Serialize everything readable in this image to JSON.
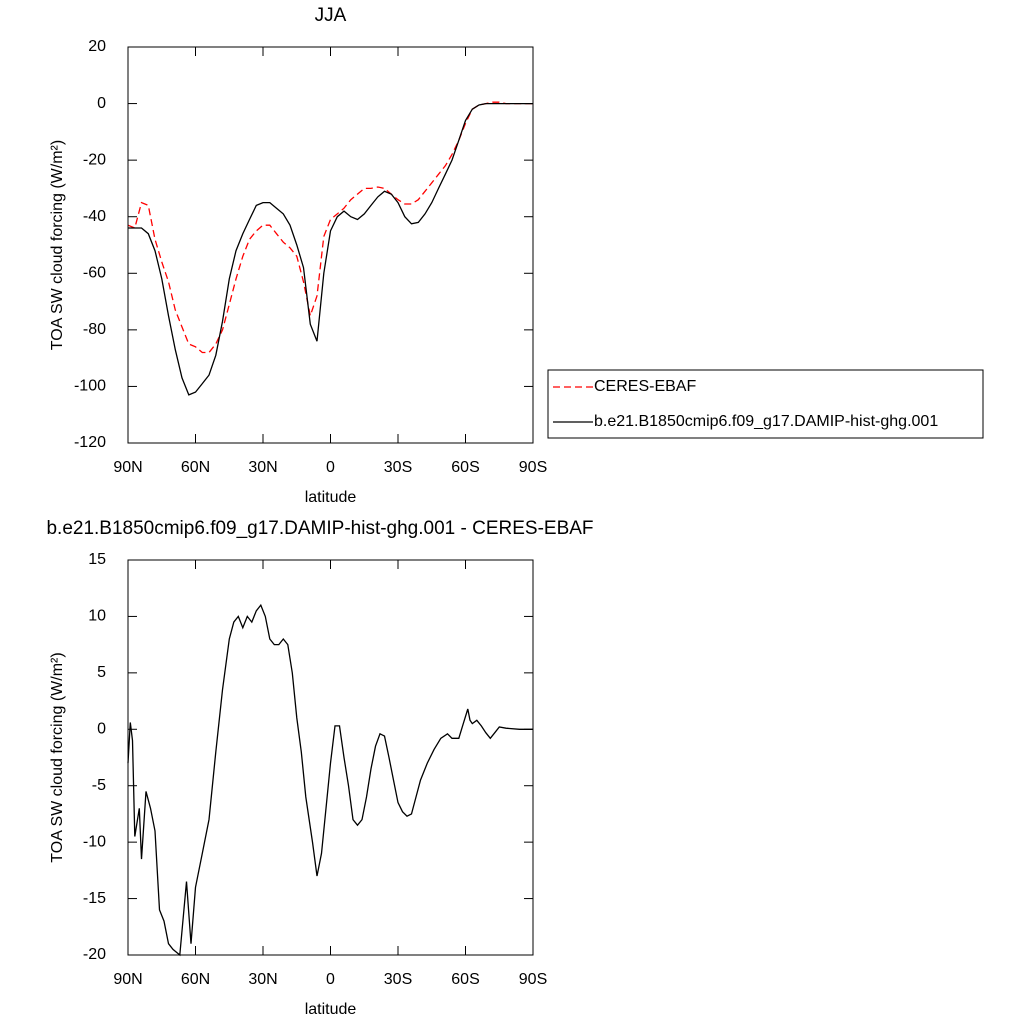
{
  "chart_data": [
    {
      "type": "line",
      "title": "JJA",
      "xlabel": "latitude",
      "ylabel": "TOA SW cloud forcing (W/m²)",
      "x": [
        90,
        87,
        84,
        81,
        78,
        75,
        72,
        69,
        66,
        63,
        60,
        57,
        54,
        51,
        48,
        45,
        42,
        39,
        36,
        33,
        30,
        27,
        24,
        21,
        18,
        15,
        12,
        9,
        6,
        3,
        0,
        -3,
        -6,
        -9,
        -12,
        -15,
        -18,
        -21,
        -24,
        -27,
        -30,
        -33,
        -36,
        -39,
        -42,
        -45,
        -48,
        -51,
        -54,
        -57,
        -60,
        -63,
        -66,
        -69,
        -72,
        -75,
        -78,
        -81,
        -84,
        -87,
        -90
      ],
      "series": [
        {
          "name": "CERES-EBAF",
          "color": "#ff0000",
          "dashed": true,
          "values": [
            -43,
            -44,
            -35,
            -36,
            -48,
            -56,
            -63,
            -73,
            -79,
            -85,
            -86,
            -88,
            -88,
            -85,
            -80,
            -71,
            -62,
            -54,
            -48,
            -45,
            -43,
            -43,
            -46,
            -49,
            -51,
            -54,
            -63,
            -75,
            -68,
            -47,
            -41,
            -39,
            -37,
            -34,
            -32,
            -30,
            -30,
            -29.5,
            -30,
            -32,
            -34,
            -35.5,
            -35.5,
            -34,
            -31,
            -28,
            -25,
            -22,
            -18,
            -13,
            -7,
            -2,
            -0.5,
            0,
            0.5,
            0.5,
            0,
            0,
            0,
            0,
            0
          ]
        },
        {
          "name": "b.e21.B1850cmip6.f09_g17.DAMIP-hist-ghg.001",
          "color": "#000000",
          "dashed": false,
          "values": [
            -44,
            -44,
            -44,
            -46,
            -52,
            -62,
            -75,
            -87,
            -97,
            -103,
            -102,
            -99,
            -96,
            -89,
            -77,
            -62,
            -52,
            -46,
            -41,
            -36,
            -35,
            -35,
            -37,
            -39,
            -43,
            -50,
            -58,
            -78,
            -84,
            -60,
            -45,
            -40,
            -38,
            -40,
            -41,
            -39,
            -36,
            -33,
            -31,
            -32,
            -35,
            -40,
            -42.5,
            -42,
            -39,
            -35,
            -30,
            -25,
            -20,
            -13,
            -6,
            -2,
            -0.5,
            0,
            0,
            0,
            0,
            0,
            0,
            0,
            0
          ]
        }
      ],
      "xlim": [
        90,
        -90
      ],
      "xticks": [
        {
          "value": 90,
          "label": "90N"
        },
        {
          "value": 60,
          "label": "60N"
        },
        {
          "value": 30,
          "label": "30N"
        },
        0,
        {
          "value": -30,
          "label": "30S"
        },
        {
          "value": -60,
          "label": "60S"
        },
        {
          "value": -90,
          "label": "90S"
        }
      ],
      "ylim": [
        -120,
        20
      ],
      "yticks": [
        20,
        0,
        -20,
        -40,
        -60,
        -80,
        -100,
        -120
      ],
      "legend": "right"
    },
    {
      "type": "line",
      "title": "b.e21.B1850cmip6.f09_g17.DAMIP-hist-ghg.001 - CERES-EBAF",
      "xlabel": "latitude",
      "ylabel": "TOA SW cloud forcing (W/m²)",
      "x": [
        90,
        89,
        88,
        87,
        85,
        84,
        82,
        80,
        78,
        76,
        74,
        72,
        70,
        67,
        64,
        62,
        60,
        57,
        54,
        51,
        48,
        45,
        43,
        41,
        39,
        37,
        35,
        33,
        31,
        29,
        27,
        25,
        23,
        21,
        19,
        17,
        15,
        13,
        11,
        8,
        6,
        4,
        2,
        0,
        -2,
        -4,
        -6,
        -8,
        -10,
        -12,
        -14,
        -16,
        -18,
        -20,
        -22,
        -24,
        -26,
        -28,
        -30,
        -32,
        -34,
        -36,
        -38,
        -40,
        -43,
        -46,
        -49,
        -52,
        -54,
        -57,
        -59,
        -61,
        -62,
        -63,
        -65,
        -67,
        -69,
        -71,
        -73,
        -75,
        -78,
        -84,
        -90
      ],
      "series": [
        {
          "name": "b.e21.B1850cmip6.f09_g17.DAMIP-hist-ghg.001 - CERES-EBAF",
          "color": "#000000",
          "dashed": false,
          "values": [
            -3,
            0.6,
            -1,
            -9.5,
            -7,
            -11.5,
            -5.5,
            -7,
            -9,
            -16,
            -17,
            -19,
            -19.5,
            -20,
            -13.5,
            -19,
            -14,
            -11,
            -8,
            -2,
            3.5,
            8,
            9.5,
            10,
            9,
            10,
            9.5,
            10.5,
            11,
            10,
            8,
            7.5,
            7.5,
            8,
            7.5,
            5,
            1,
            -2,
            -6,
            -10,
            -13,
            -11,
            -7,
            -3,
            0.3,
            0.3,
            -2.5,
            -5,
            -8,
            -8.5,
            -8,
            -6,
            -3.5,
            -1.5,
            -0.4,
            -0.6,
            -2.5,
            -4.5,
            -6.5,
            -7.3,
            -7.7,
            -7.5,
            -6,
            -4.5,
            -3,
            -1.8,
            -0.8,
            -0.4,
            -0.8,
            -0.8,
            0.5,
            1.8,
            0.8,
            0.5,
            0.8,
            0.3,
            -0.3,
            -0.8,
            -0.3,
            0.2,
            0.1,
            0,
            0
          ]
        }
      ],
      "xlim": [
        90,
        -90
      ],
      "xticks": [
        {
          "value": 90,
          "label": "90N"
        },
        {
          "value": 60,
          "label": "60N"
        },
        {
          "value": 30,
          "label": "30N"
        },
        0,
        {
          "value": -30,
          "label": "30S"
        },
        {
          "value": -60,
          "label": "60S"
        },
        {
          "value": -90,
          "label": "90S"
        }
      ],
      "ylim": [
        -20,
        15
      ],
      "yticks": [
        15,
        10,
        5,
        0,
        -5,
        -10,
        -15,
        -20
      ]
    }
  ]
}
